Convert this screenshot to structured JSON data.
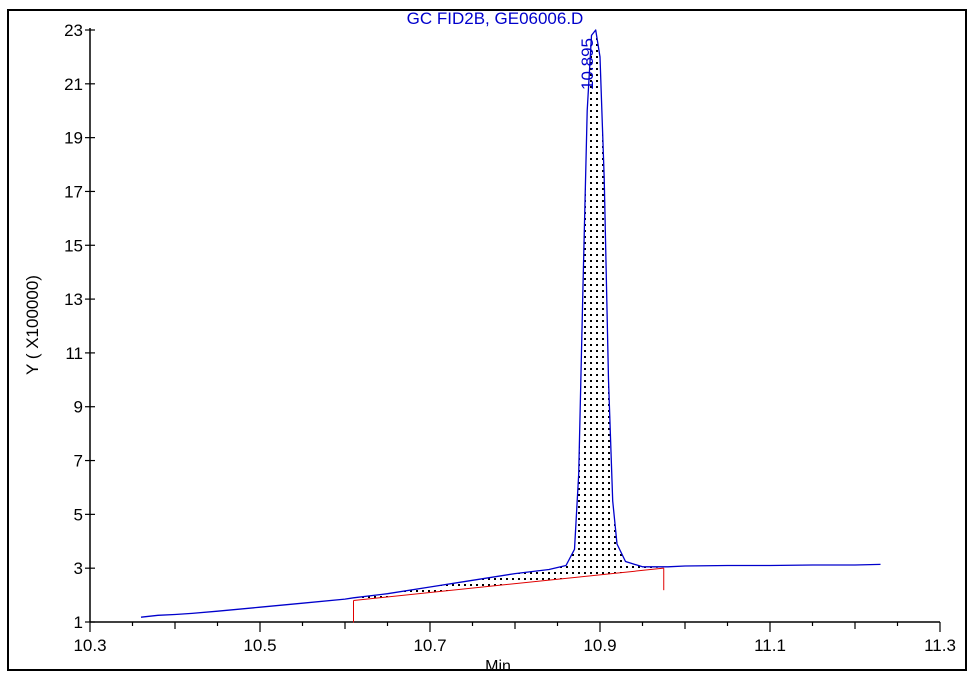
{
  "chart_data": {
    "type": "line",
    "title": "GC FID2B, GE06006.D",
    "xlabel": "Min",
    "ylabel": "Y ( X100000)",
    "xlim": [
      10.3,
      11.3
    ],
    "ylim": [
      1,
      23
    ],
    "x_ticks": [
      "10.3",
      "10.5",
      "10.7",
      "10.9",
      "11.1",
      "11.3"
    ],
    "y_ticks": [
      "1",
      "3",
      "5",
      "7",
      "9",
      "11",
      "13",
      "15",
      "17",
      "19",
      "21",
      "23"
    ],
    "peak_label": "10.895",
    "colors": {
      "signal": "#0000cc",
      "baseline": "#e00000",
      "axis": "#000000",
      "title": "#0000cc"
    },
    "series": [
      {
        "x": [
          10.36,
          10.38,
          10.4,
          10.42,
          10.45,
          10.5,
          10.55,
          10.6,
          10.61,
          10.65,
          10.7,
          10.75,
          10.8,
          10.84,
          10.86,
          10.87,
          10.875,
          10.88,
          10.885,
          10.89,
          10.895,
          10.9,
          10.905,
          10.91,
          10.915,
          10.92,
          10.93,
          10.95,
          10.98,
          11.0,
          11.05,
          11.1,
          11.15,
          11.2,
          11.23
        ],
        "y": [
          1.18,
          1.25,
          1.28,
          1.32,
          1.4,
          1.55,
          1.7,
          1.85,
          1.9,
          2.05,
          2.3,
          2.55,
          2.8,
          2.95,
          3.1,
          3.7,
          6.5,
          13.5,
          20.0,
          22.8,
          23.0,
          22.0,
          17.5,
          10.0,
          5.5,
          3.9,
          3.25,
          3.05,
          3.05,
          3.08,
          3.1,
          3.1,
          3.12,
          3.12,
          3.14
        ]
      }
    ],
    "baseline": {
      "x": [
        10.61,
        10.975
      ],
      "y": [
        1.8,
        3.0
      ]
    },
    "peak_bounds": [
      10.61,
      10.975
    ]
  }
}
